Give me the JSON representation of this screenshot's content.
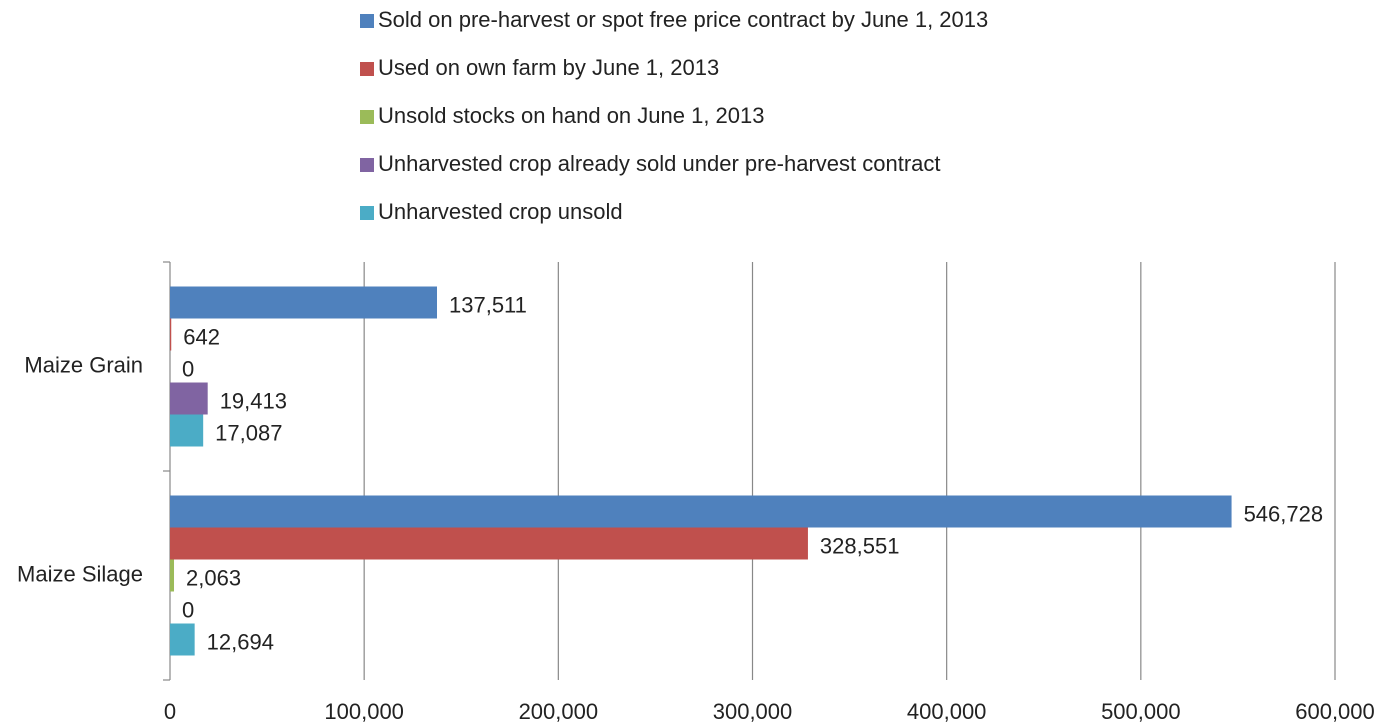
{
  "chart_data": {
    "type": "hbar",
    "categories": [
      "Maize Grain",
      "Maize Silage"
    ],
    "series": [
      {
        "name": "Sold on pre-harvest or spot free price contract by June 1, 2013",
        "color": "#4f81bd",
        "values": [
          137511,
          546728
        ],
        "value_labels": [
          "137,511",
          "546,728"
        ]
      },
      {
        "name": "Used on own farm by June 1, 2013",
        "color": "#c0504d",
        "values": [
          642,
          328551
        ],
        "value_labels": [
          "642",
          "328,551"
        ]
      },
      {
        "name": "Unsold stocks on hand on June 1, 2013",
        "color": "#9bbb59",
        "values": [
          0,
          2063
        ],
        "value_labels": [
          "0",
          "2,063"
        ]
      },
      {
        "name": "Unharvested crop already sold under pre-harvest contract",
        "color": "#8064a2",
        "values": [
          19413,
          0
        ],
        "value_labels": [
          "19,413",
          "0"
        ]
      },
      {
        "name": "Unharvested crop unsold",
        "color": "#4bacc6",
        "values": [
          17087,
          12694
        ],
        "value_labels": [
          "17,087",
          "12,694"
        ]
      }
    ],
    "xlim": [
      0,
      600000
    ],
    "xticks": [
      0,
      {
        "value": 100000,
        "label": "100,000"
      },
      {
        "value": 200000,
        "label": "200,000"
      },
      {
        "value": 300000,
        "label": "300,000"
      },
      {
        "value": 400000,
        "label": "400,000"
      },
      {
        "value": 500000,
        "label": "500,000"
      },
      {
        "value": 600000,
        "label": "600,000"
      }
    ],
    "grid": true,
    "legend": "top"
  }
}
